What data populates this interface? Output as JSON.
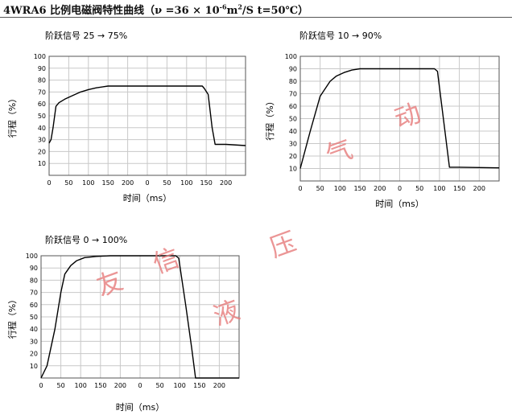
{
  "title": {
    "main": "4WRA6 比例电磁阀特性曲线（ν =36 × 10",
    "exp1": "-6",
    "mid": "m",
    "exp2": "2",
    "end": "/S  t=50℃）"
  },
  "watermark": [
    "友",
    "信",
    "液",
    "压",
    "气",
    "动"
  ],
  "colors": {
    "curve": "#000000",
    "grid": "#c8c8c8",
    "frame": "#555555",
    "watermark": "#e67a7a"
  },
  "chart_data": [
    {
      "type": "line",
      "title": "阶跃信号 25 → 75%",
      "xlabel": "时间（ms）",
      "ylabel": "行程（%）",
      "xticks": [
        "0",
        "50",
        "100",
        "150",
        "200",
        "0",
        "50",
        "100",
        "150",
        "200"
      ],
      "yticks": [
        "10",
        "20",
        "30",
        "40",
        "50",
        "60",
        "70",
        "80",
        "90",
        "100"
      ],
      "ylim": [
        0,
        100
      ],
      "x_units": "grid-divisions (0–10)",
      "grid": true,
      "series": [
        {
          "x": [
            0,
            0.1,
            0.2,
            0.35,
            0.5,
            0.8,
            1.2,
            1.6,
            2.0,
            2.4,
            3,
            4,
            5,
            6,
            7,
            7.5,
            7.8,
            7.9,
            8.1,
            8.3,
            8.45,
            9,
            10
          ],
          "y": [
            27,
            30,
            40,
            58,
            61,
            64,
            67,
            70,
            72,
            73.5,
            75,
            75,
            75,
            75,
            75,
            75,
            75,
            73,
            68,
            40,
            26,
            26,
            25
          ]
        }
      ]
    },
    {
      "type": "line",
      "title": "阶跃信号 10 → 90%",
      "xlabel": "时间（ms）",
      "ylabel": "行程（%）",
      "xticks": [
        "0",
        "50",
        "100",
        "150",
        "200",
        "0",
        "50",
        "100",
        "150",
        "200"
      ],
      "yticks": [
        "10",
        "20",
        "30",
        "40",
        "50",
        "60",
        "70",
        "80",
        "90",
        "100"
      ],
      "ylim": [
        0,
        100
      ],
      "x_units": "grid-divisions (0–10)",
      "grid": true,
      "series": [
        {
          "x": [
            0,
            0.5,
            1.0,
            1.5,
            1.8,
            2.2,
            2.6,
            3,
            4,
            5,
            6,
            6.5,
            6.75,
            6.9,
            7.5,
            8,
            9,
            10
          ],
          "y": [
            10,
            40,
            68,
            80,
            84,
            87,
            89,
            90,
            90,
            90,
            90,
            90,
            90,
            88,
            11,
            11,
            10.8,
            10.5
          ]
        }
      ]
    },
    {
      "type": "line",
      "title": "阶跃信号  0 → 100%",
      "xlabel": "时间（ms）",
      "ylabel": "行程（%）",
      "xticks": [
        "0",
        "50",
        "100",
        "150",
        "200",
        "0",
        "50",
        "100",
        "150",
        "200"
      ],
      "yticks": [
        "10",
        "20",
        "30",
        "40",
        "50",
        "60",
        "70",
        "80",
        "90",
        "100"
      ],
      "ylim": [
        0,
        100
      ],
      "x_units": "grid-divisions (0–10)",
      "grid": true,
      "series": [
        {
          "x": [
            0,
            0.3,
            0.7,
            1.0,
            1.2,
            1.5,
            1.8,
            2.2,
            2.8,
            3.5,
            4.5,
            5.5,
            6.5,
            6.8,
            6.95,
            7.3,
            7.6,
            7.8,
            10
          ],
          "y": [
            0,
            10,
            40,
            70,
            85,
            92,
            96,
            98.5,
            99.5,
            100,
            100,
            100,
            100,
            100,
            98,
            60,
            25,
            0,
            0
          ]
        }
      ]
    }
  ]
}
